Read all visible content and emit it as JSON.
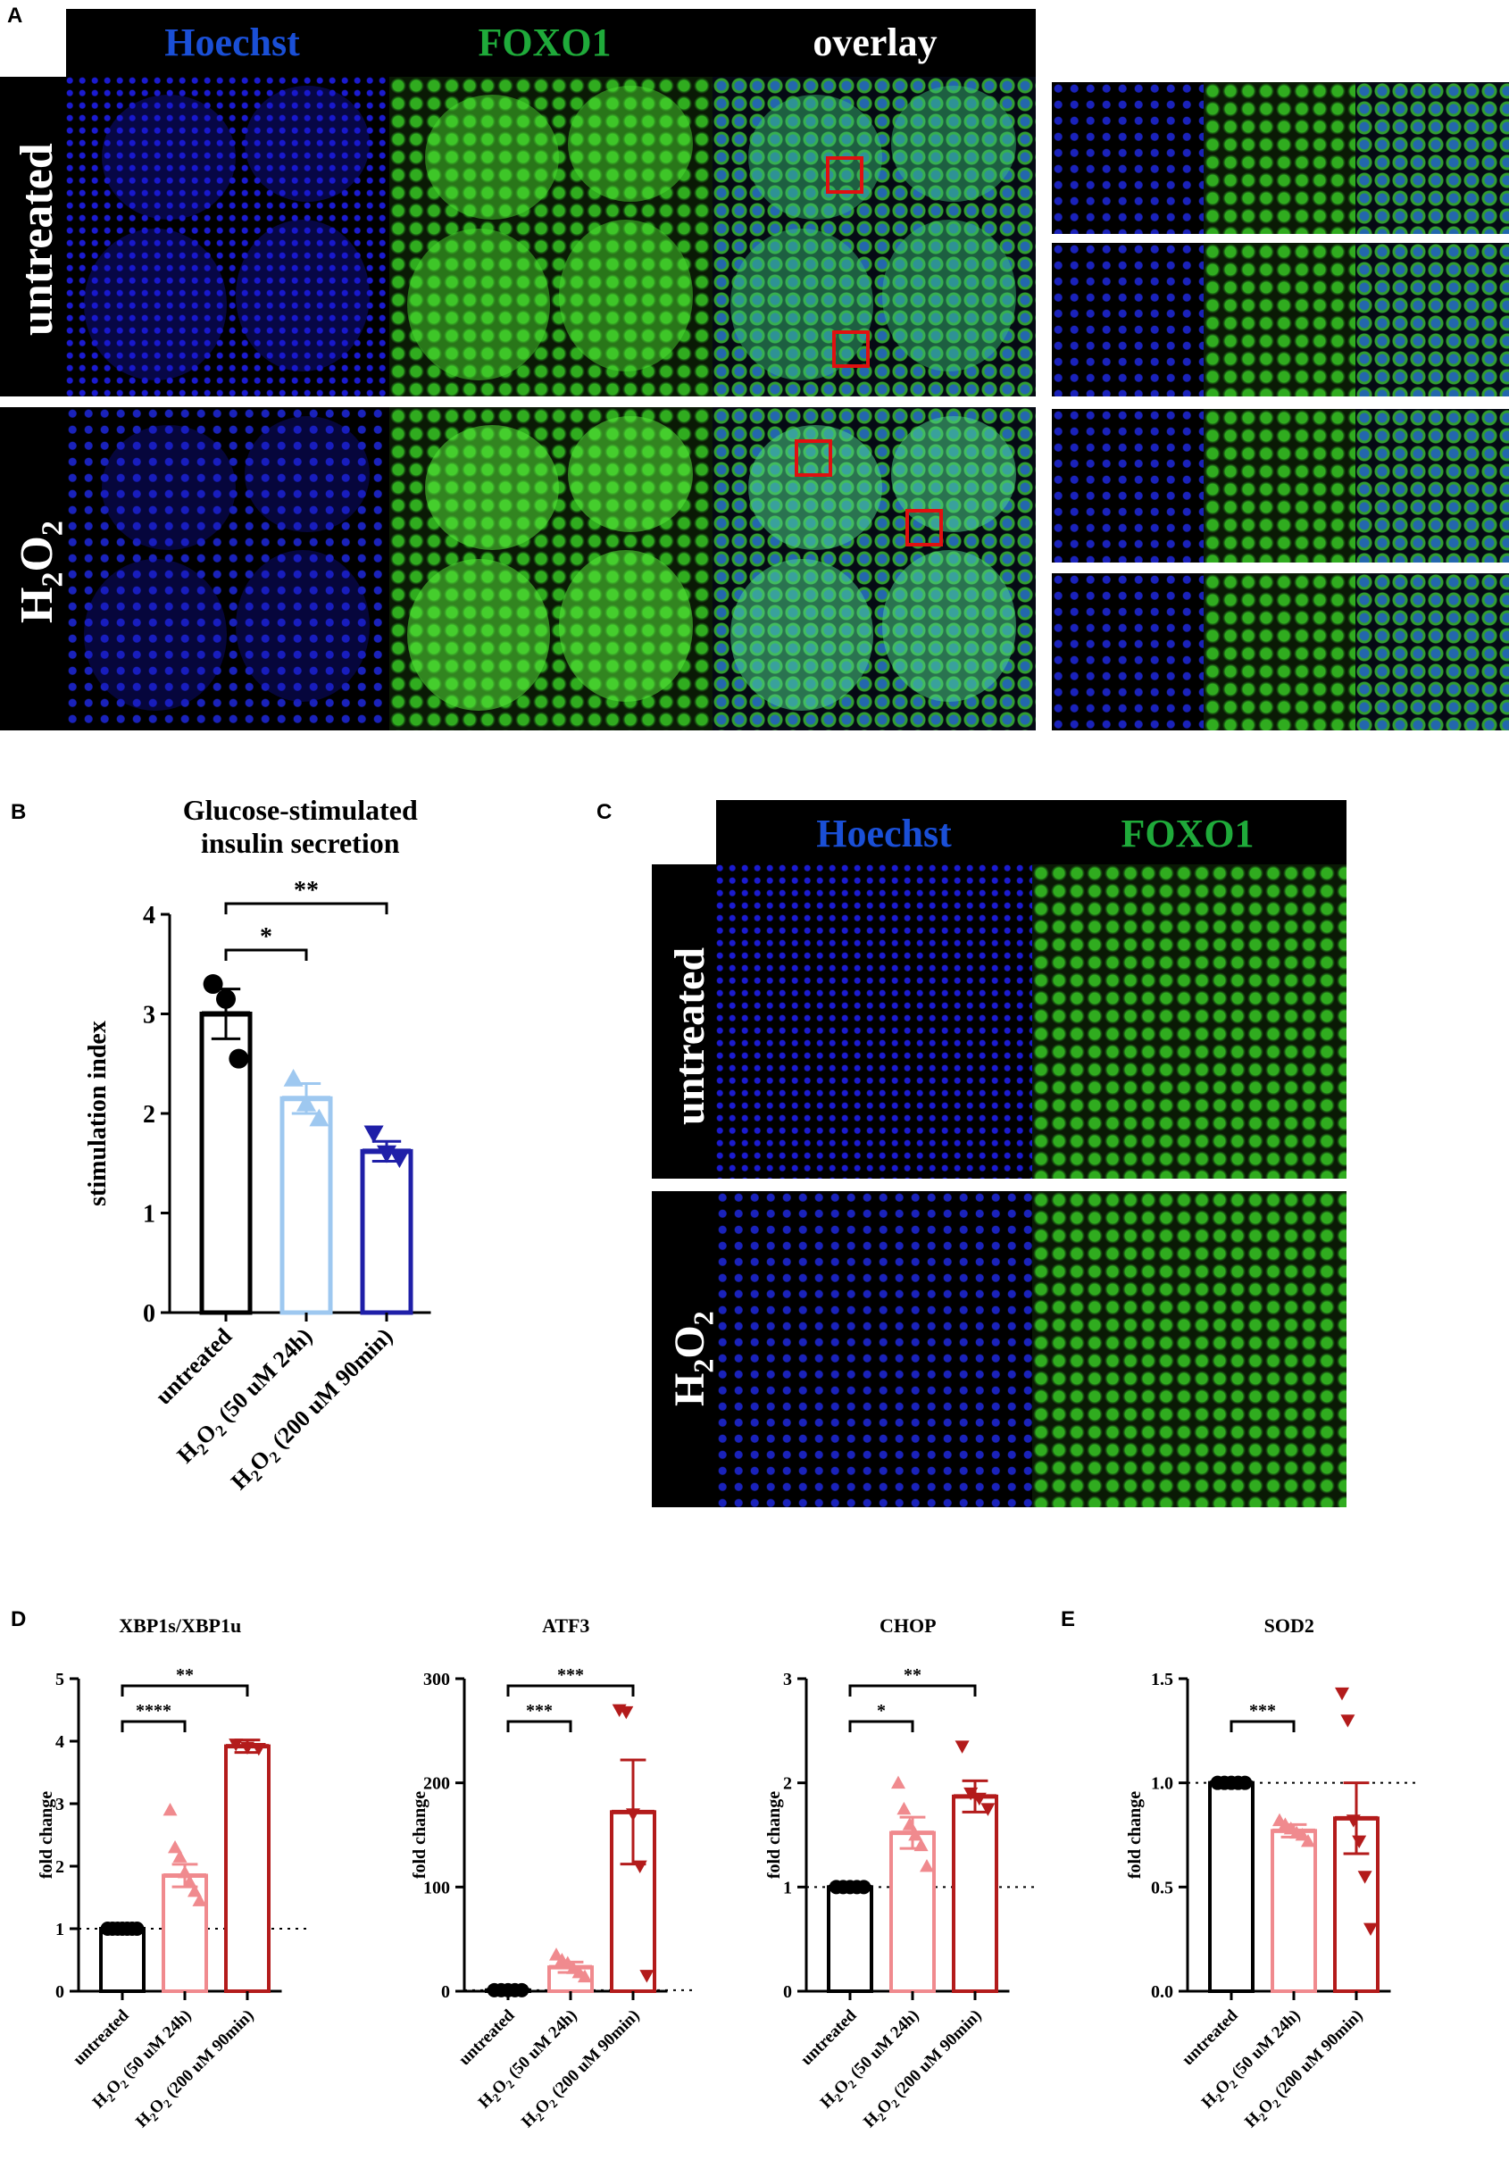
{
  "panelA": {
    "letter": "A",
    "headers": [
      "Hoechst",
      "FOXO1",
      "overlay"
    ],
    "rows": [
      "untreated",
      "H2O2"
    ]
  },
  "panelB": {
    "letter": "B",
    "title_line1": "Glucose-stimulated",
    "title_line2": "insulin secretion",
    "ylabel": "stimulation index",
    "significance": [
      "*",
      "**"
    ]
  },
  "panelC": {
    "letter": "C",
    "headers": [
      "Hoechst",
      "FOXO1"
    ],
    "rows": [
      "untreated",
      "H2O2"
    ]
  },
  "panelD": {
    "letter": "D"
  },
  "panelE": {
    "letter": "E"
  },
  "colors": {
    "untreated": "#000000",
    "b_h2o2_24h": "#9ec8f0",
    "b_h2o2_90min": "#1f1fa8",
    "d_h2o2_24h": "#f08a8e",
    "d_h2o2_90min": "#b31b1b",
    "hoechst": "#1a4fd6",
    "foxo1": "#1faa3a"
  },
  "chart_data": [
    {
      "id": "B",
      "type": "bar",
      "title": "Glucose-stimulated insulin secretion",
      "ylabel": "stimulation index",
      "categories": [
        "untreated",
        "H2O2 (50 uM 24h)",
        "H2O2 (200 uM 90min)"
      ],
      "values": [
        3.0,
        2.15,
        1.62
      ],
      "errors": [
        0.25,
        0.15,
        0.1
      ],
      "points": [
        [
          3.3,
          3.15,
          2.55
        ],
        [
          2.35,
          2.1,
          1.95
        ],
        [
          1.8,
          1.6,
          1.55
        ]
      ],
      "markers": [
        "circle",
        "triangle-up",
        "triangle-down"
      ],
      "ylim": [
        0,
        4
      ],
      "yticks": [
        0,
        1,
        2,
        3,
        4
      ],
      "significance": [
        {
          "pair": [
            0,
            1
          ],
          "label": "*"
        },
        {
          "pair": [
            0,
            2
          ],
          "label": "**"
        }
      ]
    },
    {
      "id": "D1",
      "type": "bar",
      "title": "XBP1s/XBP1u",
      "ylabel": "fold change",
      "categories": [
        "untreated",
        "H2O2 (50 uM 24h)",
        "H2O2 (200 uM 90min)"
      ],
      "values": [
        1.0,
        1.85,
        3.92
      ],
      "errors": [
        0.0,
        0.18,
        0.1
      ],
      "points": [
        [
          1,
          1,
          1,
          1,
          1,
          1,
          1
        ],
        [
          2.9,
          2.3,
          2.15,
          1.9,
          1.75,
          1.6,
          1.45
        ],
        [
          3.95,
          3.9,
          3.88
        ]
      ],
      "markers": [
        "circle",
        "triangle-up",
        "triangle-down"
      ],
      "ylim": [
        0,
        5
      ],
      "yticks": [
        0,
        1,
        2,
        3,
        4,
        5
      ],
      "baseline": 1,
      "significance": [
        {
          "pair": [
            0,
            1
          ],
          "label": "****"
        },
        {
          "pair": [
            0,
            2
          ],
          "label": "**"
        }
      ]
    },
    {
      "id": "D2",
      "type": "bar",
      "title": "ATF3",
      "ylabel": "fold change",
      "categories": [
        "untreated",
        "H2O2 (50 uM 24h)",
        "H2O2 (200 uM 90min)"
      ],
      "values": [
        1.0,
        23,
        172
      ],
      "errors": [
        0.0,
        5,
        50
      ],
      "points": [
        [
          1,
          1,
          1,
          1,
          1
        ],
        [
          35,
          30,
          27,
          22,
          18,
          14
        ],
        [
          270,
          268,
          170,
          120,
          15
        ]
      ],
      "markers": [
        "circle",
        "triangle-up",
        "triangle-down"
      ],
      "ylim": [
        0,
        300
      ],
      "yticks": [
        0,
        100,
        200,
        300
      ],
      "baseline": 1,
      "significance": [
        {
          "pair": [
            0,
            1
          ],
          "label": "***"
        },
        {
          "pair": [
            0,
            2
          ],
          "label": "***"
        }
      ]
    },
    {
      "id": "D3",
      "type": "bar",
      "title": "CHOP",
      "ylabel": "fold change",
      "categories": [
        "untreated",
        "H2O2 (50 uM 24h)",
        "H2O2 (200 uM 90min)"
      ],
      "values": [
        1.0,
        1.52,
        1.87
      ],
      "errors": [
        0.0,
        0.15,
        0.15
      ],
      "points": [
        [
          1,
          1,
          1,
          1,
          1
        ],
        [
          2.0,
          1.75,
          1.6,
          1.5,
          1.4,
          1.2
        ],
        [
          2.35,
          1.9,
          1.85,
          1.75
        ]
      ],
      "markers": [
        "circle",
        "triangle-up",
        "triangle-down"
      ],
      "ylim": [
        0,
        3
      ],
      "yticks": [
        0,
        1,
        2,
        3
      ],
      "baseline": 1,
      "significance": [
        {
          "pair": [
            0,
            1
          ],
          "label": "*"
        },
        {
          "pair": [
            0,
            2
          ],
          "label": "**"
        }
      ]
    },
    {
      "id": "E",
      "type": "bar",
      "title": "SOD2",
      "ylabel": "fold change",
      "categories": [
        "untreated",
        "H2O2 (50 uM 24h)",
        "H2O2 (200 uM 90min)"
      ],
      "values": [
        1.0,
        0.77,
        0.83
      ],
      "errors": [
        0.0,
        0.03,
        0.17
      ],
      "points": [
        [
          1,
          1,
          1,
          1,
          1
        ],
        [
          0.82,
          0.8,
          0.78,
          0.76,
          0.75,
          0.72
        ],
        [
          1.43,
          1.3,
          0.82,
          0.72,
          0.55,
          0.3
        ]
      ],
      "markers": [
        "circle",
        "triangle-up",
        "triangle-down"
      ],
      "ylim": [
        0,
        1.5
      ],
      "yticks": [
        0.0,
        0.5,
        1.0,
        1.5
      ],
      "baseline": 1,
      "significance": [
        {
          "pair": [
            0,
            1
          ],
          "label": "***"
        }
      ]
    }
  ]
}
